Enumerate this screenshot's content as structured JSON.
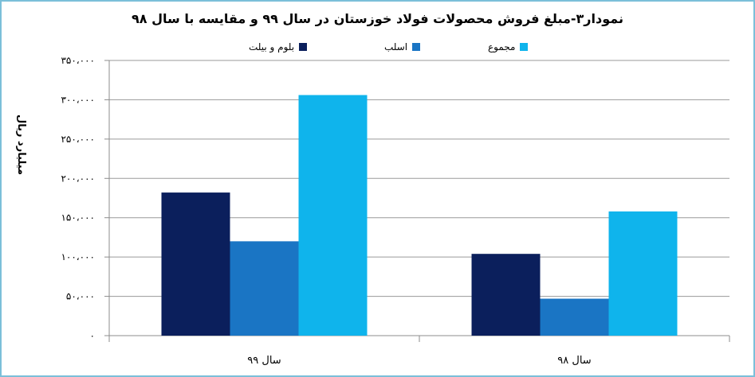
{
  "chart_data": {
    "type": "bar",
    "title": "نمودار۳-مبلغ فروش محصولات فولاد خوزستان در سال ۹۹ و مقایسه با سال ۹۸",
    "ylabel": "میلیارد ریال",
    "xlabel": "",
    "categories": [
      "سال ۹۹",
      "سال ۹۸"
    ],
    "series": [
      {
        "name": "بلوم و بیلت",
        "color": "#0b1f5c",
        "values": [
          182000,
          104000
        ]
      },
      {
        "name": "اسلب",
        "color": "#1a75c4",
        "values": [
          120000,
          47000
        ]
      },
      {
        "name": "مجموع",
        "color": "#0fb4ec",
        "values": [
          306000,
          158000
        ]
      }
    ],
    "ylim": [
      0,
      350000
    ],
    "yticks": [
      0,
      50000,
      100000,
      150000,
      200000,
      250000,
      300000,
      350000
    ],
    "ytick_labels": [
      "۰",
      "۵۰،۰۰۰",
      "۱۰۰،۰۰۰",
      "۱۵۰،۰۰۰",
      "۲۰۰،۰۰۰",
      "۲۵۰،۰۰۰",
      "۳۰۰،۰۰۰",
      "۳۵۰،۰۰۰"
    ],
    "grid": true,
    "legend_position": "top"
  }
}
